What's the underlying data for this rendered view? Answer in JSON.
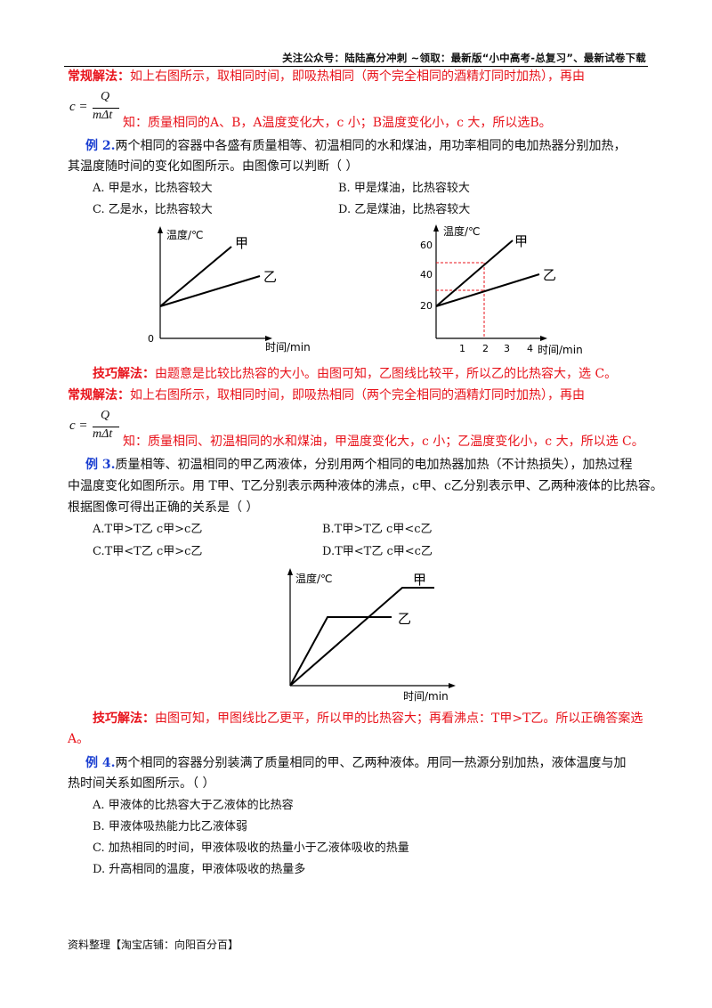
{
  "header": "关注公众号：陆陆高分冲刺   ~领取：最新版“小中高考-总复习”、最新试卷下载",
  "p1": {
    "label": "常规解法：",
    "text": "如上右图所示，取相同时间，即吸热相同（两个完全相同的酒精灯同时加热），再由"
  },
  "formula": {
    "lhs": "c =",
    "num": "Q",
    "den": "mΔt"
  },
  "p1b": "知：质量相同的A、B，A温度变化大，c 小；B温度变化小，c 大，所以选B。",
  "ex2": {
    "label": "例 2.",
    "line1": "两个相同的容器中各盛有质量相等、初温相同的水和煤油，用功率相同的电加热器分别加热，",
    "line2": "其温度随时间的变化如图所示。由图像可以判断（      ）",
    "options": [
      "A. 甲是水，比热容较大",
      "B. 甲是煤油，比热容较大",
      "C. 乙是水，比热容较大",
      "D. 乙是煤油，比热容较大"
    ]
  },
  "chart1": {
    "ylabel": "温度/℃",
    "xlabel": "时间/min",
    "origin": "0",
    "series": [
      "甲",
      "乙"
    ]
  },
  "chart2": {
    "ylabel": "温度/℃",
    "xlabel": "时间/min",
    "yticks": [
      "60",
      "40",
      "20"
    ],
    "xticks": [
      "1",
      "2",
      "3",
      "4"
    ],
    "series": [
      "甲",
      "乙"
    ]
  },
  "p2": {
    "label": "技巧解法：",
    "text": "由题意是比较比热容的大小。由图可知，乙图线比较平，所以乙的比热容大，选 C。"
  },
  "p3": {
    "label": "常规解法：",
    "text": "如上右图所示，取相同时间，即吸热相同（两个完全相同的酒精灯同时加热），再由"
  },
  "p3b": "知：质量相同、初温相同的水和煤油，甲温度变化大，c 小；乙温度变化小，c 大，所以选 C。",
  "ex3": {
    "label": "例 3.",
    "line1": "质量相等、初温相同的甲乙两液体，分别用两个相同的电加热器加热（不计热损失），加热过程",
    "line2": "中温度变化如图所示。用 T甲、T乙分别表示两种液体的沸点，c甲、c乙分别表示甲、乙两种液体的比热容。",
    "line3": "根据图像可得出正确的关系是（      ）",
    "options": [
      "A.T甲>T乙   c甲>c乙",
      "B.T甲>T乙   c甲<c乙",
      "C.T甲<T乙   c甲>c乙",
      "D.T甲<T乙   c甲<c乙"
    ]
  },
  "chart3": {
    "ylabel": "温度/℃",
    "xlabel": "时间/min",
    "series": [
      "甲",
      "乙"
    ]
  },
  "p4": {
    "label": "技巧解法：",
    "text": "由图可知，甲图线比乙更平，所以甲的比热容大；再看沸点：T甲>T乙。所以正确答案选",
    "text2": "A。"
  },
  "ex4": {
    "label": "例 4.",
    "line1": "两个相同的容器分别装满了质量相同的甲、乙两种液体。用同一热源分别加热，液体温度与加",
    "line2": "热时间关系如图所示。（      ）",
    "options": [
      "A. 甲液体的比热容大于乙液体的比热容",
      "B. 甲液体吸热能力比乙液体弱",
      "C. 加热相同的时间，甲液体吸收的热量小于乙液体吸收的热量",
      "D. 升高相同的温度，甲液体吸收的热量多"
    ]
  },
  "footer": "资料整理【淘宝店铺：向阳百分百】"
}
